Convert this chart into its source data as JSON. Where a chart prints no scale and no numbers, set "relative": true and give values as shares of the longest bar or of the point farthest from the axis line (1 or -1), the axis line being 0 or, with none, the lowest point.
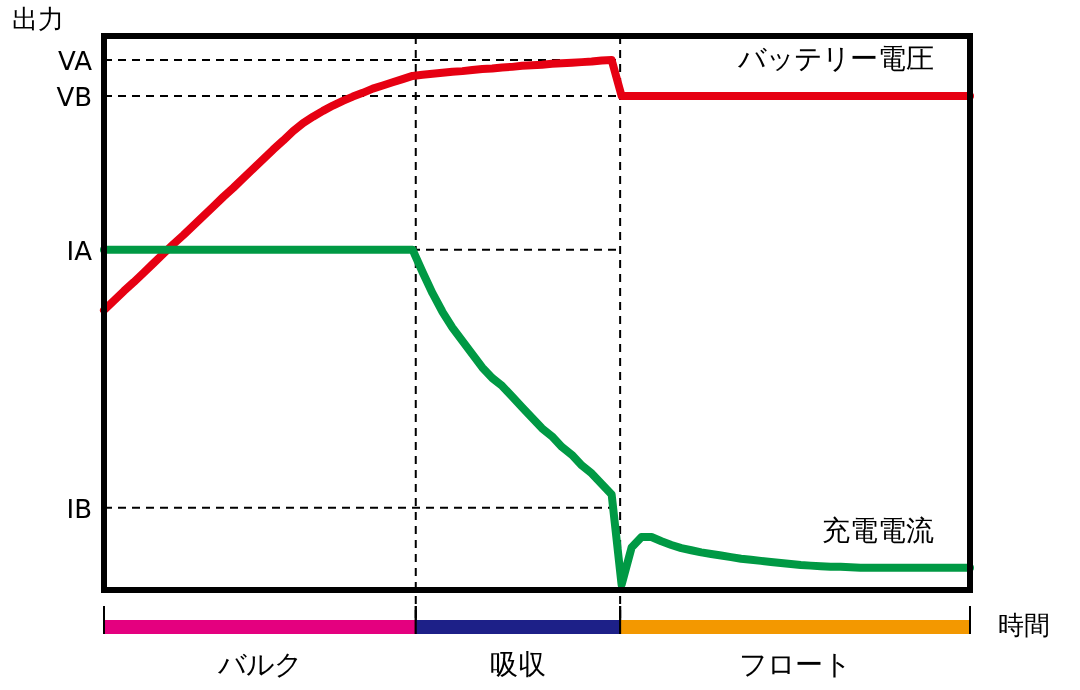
{
  "chart_data": {
    "type": "line",
    "relative": true,
    "ylabel": "出力",
    "xlabel": "時間",
    "marker": "none",
    "line_style": "solid",
    "categories": [
      null,
      null,
      null,
      null,
      null,
      null,
      null,
      null,
      null,
      null,
      null,
      null,
      null,
      null,
      null,
      null,
      null,
      null,
      null,
      null,
      null,
      null,
      null,
      null,
      null,
      null,
      null,
      null,
      null,
      null,
      null,
      null,
      null,
      null,
      null,
      null,
      null,
      null,
      null,
      null,
      null,
      null,
      null,
      null,
      null,
      null,
      null,
      null,
      null,
      null,
      null,
      null,
      null,
      null,
      null,
      null,
      null,
      null,
      null,
      null,
      null,
      null,
      null,
      null,
      null,
      null,
      null,
      null,
      null,
      null,
      null,
      null,
      null,
      null,
      null,
      null,
      null,
      null,
      null,
      null,
      null,
      null,
      null,
      null,
      null,
      null,
      null,
      null
    ],
    "series": [
      {
        "name": "バッテリー電圧",
        "color": "#e60012",
        "values": [
          0.528,
          0.546,
          0.564,
          0.581,
          0.599,
          0.617,
          0.635,
          0.653,
          0.67,
          0.688,
          0.706,
          0.724,
          0.742,
          0.759,
          0.777,
          0.795,
          0.813,
          0.831,
          0.848,
          0.866,
          0.881,
          0.893,
          0.904,
          0.914,
          0.923,
          0.931,
          0.938,
          0.946,
          0.952,
          0.958,
          0.964,
          0.97,
          0.972,
          0.974,
          0.976,
          0.978,
          0.979,
          0.981,
          0.983,
          0.984,
          0.986,
          0.987,
          0.989,
          0.99,
          0.991,
          0.993,
          0.994,
          0.995,
          0.996,
          0.997,
          0.999,
          1.0,
          0.932,
          0.932,
          0.932,
          0.932,
          0.932,
          0.932,
          0.932,
          0.932,
          0.932,
          0.932,
          0.932,
          0.932,
          0.932,
          0.932,
          0.932,
          0.932,
          0.932,
          0.932,
          0.932,
          0.932,
          0.932,
          0.932,
          0.932,
          0.932,
          0.932,
          0.932,
          0.932,
          0.932,
          0.932,
          0.932,
          0.932,
          0.932,
          0.932,
          0.932,
          0.932,
          0.932
        ]
      },
      {
        "name": "充電電流",
        "color": "#009944",
        "values": [
          0.642,
          0.642,
          0.642,
          0.642,
          0.642,
          0.642,
          0.642,
          0.642,
          0.642,
          0.642,
          0.642,
          0.642,
          0.642,
          0.642,
          0.642,
          0.642,
          0.642,
          0.642,
          0.642,
          0.642,
          0.642,
          0.642,
          0.642,
          0.642,
          0.642,
          0.642,
          0.642,
          0.642,
          0.642,
          0.642,
          0.642,
          0.642,
          0.6,
          0.56,
          0.525,
          0.495,
          0.47,
          0.445,
          0.42,
          0.4,
          0.385,
          0.365,
          0.345,
          0.325,
          0.305,
          0.29,
          0.27,
          0.255,
          0.235,
          0.22,
          0.2,
          0.18,
          0.01,
          0.08,
          0.1,
          0.1,
          0.092,
          0.085,
          0.079,
          0.075,
          0.071,
          0.068,
          0.065,
          0.062,
          0.059,
          0.057,
          0.055,
          0.053,
          0.051,
          0.049,
          0.047,
          0.046,
          0.045,
          0.044,
          0.044,
          0.043,
          0.042,
          0.042,
          0.042,
          0.042,
          0.042,
          0.042,
          0.042,
          0.042,
          0.042,
          0.042,
          0.042,
          0.042
        ]
      }
    ],
    "ref_lines": [
      {
        "axis": "y",
        "value": 1.0,
        "label": "VA",
        "line_style": "dashed",
        "color": "#000000"
      },
      {
        "axis": "y",
        "value": 0.932,
        "label": "VB",
        "line_style": "dashed",
        "color": "#000000"
      },
      {
        "axis": "y",
        "value": 0.642,
        "label": "IA",
        "line_style": "dashed",
        "color": "#000000"
      },
      {
        "axis": "y",
        "value": 0.155,
        "label": "IB",
        "line_style": "dashed",
        "color": "#000000"
      }
    ],
    "annotations": [
      "バルク",
      "吸収",
      "フロート"
    ]
  }
}
